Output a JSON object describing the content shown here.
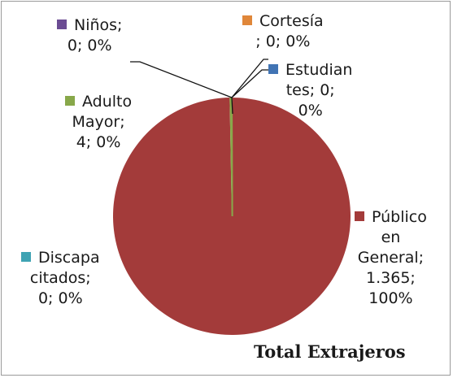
{
  "chart_data": {
    "type": "pie",
    "title": "Total Extrajeros",
    "slices": [
      {
        "category": "Público en General",
        "value": 1365,
        "percent": "100%",
        "color": "#a33b3a",
        "label_lines": [
          "Público",
          "en",
          "General;",
          "1.365;",
          "100%"
        ]
      },
      {
        "category": "Discapacitados",
        "value": 0,
        "percent": "0%",
        "color": "#3fa3b3",
        "label_lines": [
          "Discapa",
          "citados;",
          "0; 0%"
        ]
      },
      {
        "category": "Adulto Mayor",
        "value": 4,
        "percent": "0%",
        "color": "#88a84a",
        "label_lines": [
          "Adulto",
          "Mayor;",
          "4; 0%"
        ]
      },
      {
        "category": "Niños",
        "value": 0,
        "percent": "0%",
        "color": "#6b4c93",
        "label_lines": [
          "Niños;",
          "0; 0%"
        ]
      },
      {
        "category": "Cortesía",
        "value": 0,
        "percent": "0%",
        "color": "#e0873a",
        "label_lines": [
          "Cortesía",
          "; 0; 0%"
        ]
      },
      {
        "category": "Estudiantes",
        "value": 0,
        "percent": "0%",
        "color": "#4174b4",
        "label_lines": [
          "Estudian",
          "tes; 0;",
          "0%"
        ]
      }
    ]
  }
}
